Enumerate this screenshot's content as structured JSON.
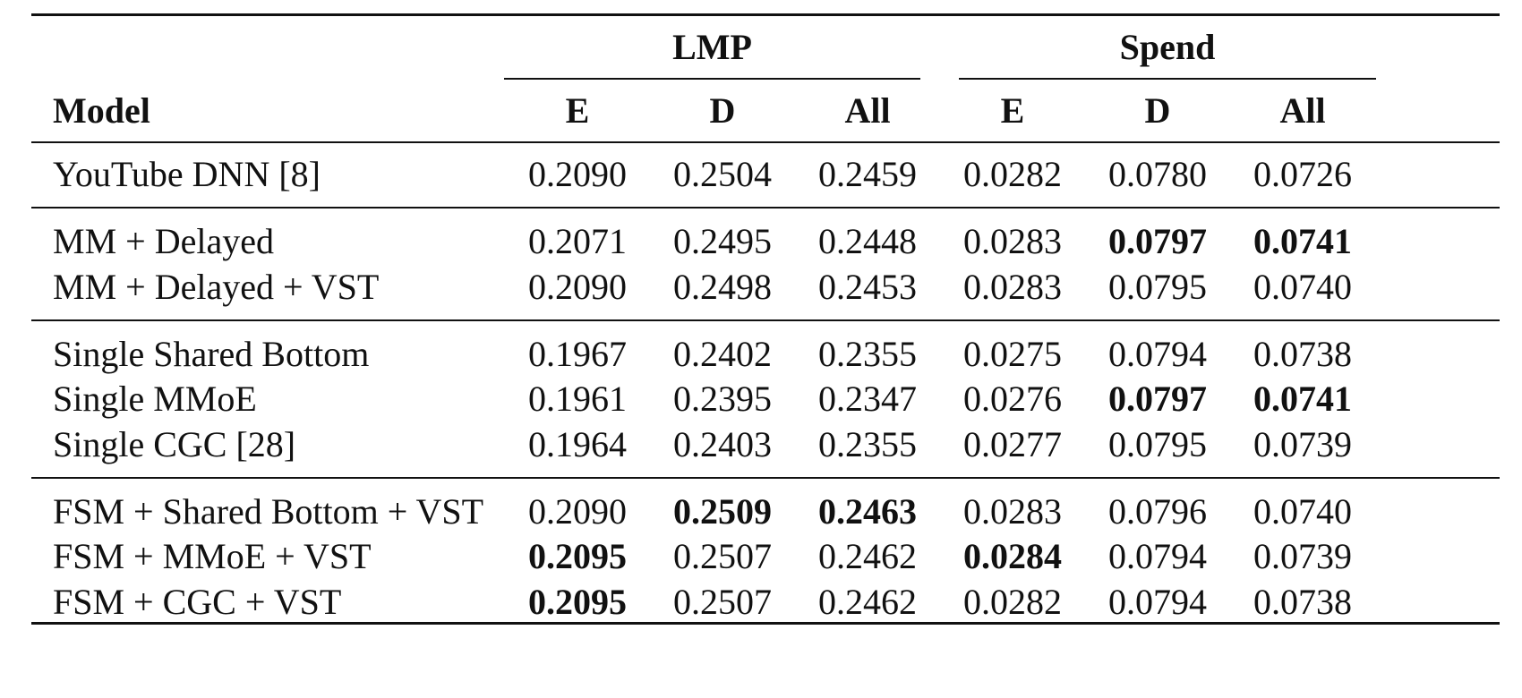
{
  "header": {
    "model_label": "Model",
    "groups": [
      {
        "label": "LMP",
        "columns": [
          "E",
          "D",
          "All"
        ]
      },
      {
        "label": "Spend",
        "columns": [
          "E",
          "D",
          "All"
        ]
      }
    ]
  },
  "row_groups": [
    [
      {
        "model": "YouTube DNN [8]",
        "values": [
          "0.2090",
          "0.2504",
          "0.2459",
          "0.0282",
          "0.0780",
          "0.0726"
        ],
        "bold": []
      }
    ],
    [
      {
        "model": "MM + Delayed",
        "values": [
          "0.2071",
          "0.2495",
          "0.2448",
          "0.0283",
          "0.0797",
          "0.0741"
        ],
        "bold": [
          4,
          5
        ]
      },
      {
        "model": "MM + Delayed + VST",
        "values": [
          "0.2090",
          "0.2498",
          "0.2453",
          "0.0283",
          "0.0795",
          "0.0740"
        ],
        "bold": []
      }
    ],
    [
      {
        "model": "Single Shared Bottom",
        "values": [
          "0.1967",
          "0.2402",
          "0.2355",
          "0.0275",
          "0.0794",
          "0.0738"
        ],
        "bold": []
      },
      {
        "model": "Single MMoE",
        "values": [
          "0.1961",
          "0.2395",
          "0.2347",
          "0.0276",
          "0.0797",
          "0.0741"
        ],
        "bold": [
          4,
          5
        ]
      },
      {
        "model": "Single CGC [28]",
        "values": [
          "0.1964",
          "0.2403",
          "0.2355",
          "0.0277",
          "0.0795",
          "0.0739"
        ],
        "bold": []
      }
    ],
    [
      {
        "model": "FSM + Shared Bottom + VST",
        "values": [
          "0.2090",
          "0.2509",
          "0.2463",
          "0.0283",
          "0.0796",
          "0.0740"
        ],
        "bold": [
          1,
          2
        ]
      },
      {
        "model": "FSM + MMoE + VST",
        "values": [
          "0.2095",
          "0.2507",
          "0.2462",
          "0.0284",
          "0.0794",
          "0.0739"
        ],
        "bold": [
          0,
          3
        ]
      },
      {
        "model": "FSM + CGC + VST",
        "values": [
          "0.2095",
          "0.2507",
          "0.2462",
          "0.0282",
          "0.0794",
          "0.0738"
        ],
        "bold": [
          0
        ]
      }
    ]
  ]
}
